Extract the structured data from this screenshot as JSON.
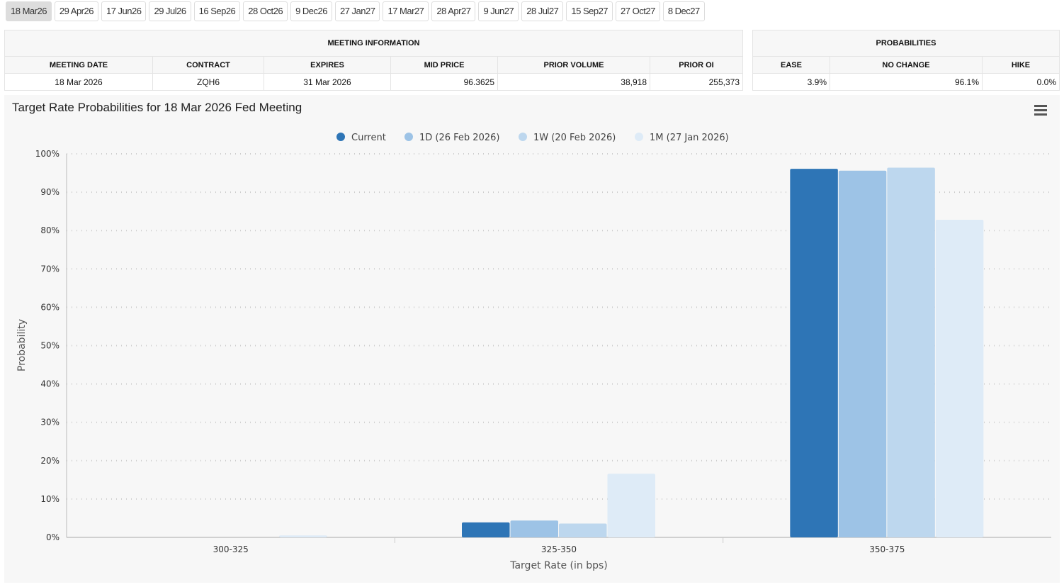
{
  "tabs": [
    "18 Mar26",
    "29 Apr26",
    "17 Jun26",
    "29 Jul26",
    "16 Sep26",
    "28 Oct26",
    "9 Dec26",
    "27 Jan27",
    "17 Mar27",
    "28 Apr27",
    "9 Jun27",
    "28 Jul27",
    "15 Sep27",
    "27 Oct27",
    "8 Dec27"
  ],
  "meeting_info": {
    "title": "MEETING INFORMATION",
    "headers": [
      "MEETING DATE",
      "CONTRACT",
      "EXPIRES",
      "MID PRICE",
      "PRIOR VOLUME",
      "PRIOR OI"
    ],
    "values": [
      "18 Mar 2026",
      "ZQH6",
      "31 Mar 2026",
      "96.3625",
      "38,918",
      "255,373"
    ]
  },
  "probabilities": {
    "title": "PROBABILITIES",
    "headers": [
      "EASE",
      "NO CHANGE",
      "HIKE"
    ],
    "values": [
      "3.9%",
      "96.1%",
      "0.0%"
    ]
  },
  "chart_data": {
    "type": "bar",
    "title": "Target Rate Probabilities for 18 Mar 2026 Fed Meeting",
    "xlabel": "Target Rate (in bps)",
    "ylabel": "Probability",
    "categories": [
      "300-325",
      "325-350",
      "350-375"
    ],
    "ylim": [
      0,
      100
    ],
    "yticks": [
      "0%",
      "10%",
      "20%",
      "30%",
      "40%",
      "50%",
      "60%",
      "70%",
      "80%",
      "90%",
      "100%"
    ],
    "grid": true,
    "legend": "top",
    "series": [
      {
        "name": "Current",
        "color": "#2e75b6",
        "values": [
          0,
          3.9,
          96.1
        ]
      },
      {
        "name": "1D (26 Feb 2026)",
        "color": "#9dc3e6",
        "values": [
          0,
          4.4,
          95.6
        ]
      },
      {
        "name": "1W (20 Feb 2026)",
        "color": "#bdd7ee",
        "values": [
          0,
          3.6,
          96.4
        ]
      },
      {
        "name": "1M (27 Jan 2026)",
        "color": "#deebf7",
        "values": [
          0.5,
          16.6,
          82.8
        ]
      }
    ]
  }
}
